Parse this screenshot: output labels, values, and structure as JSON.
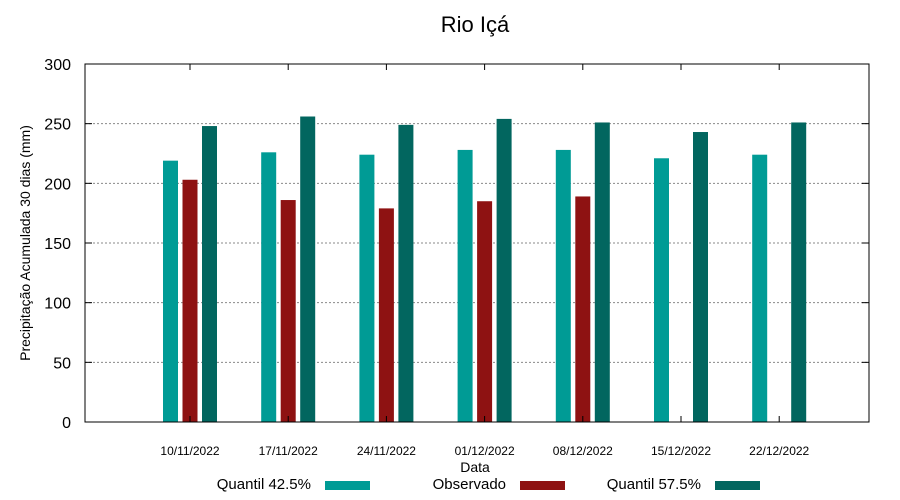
{
  "chart_data": {
    "type": "bar",
    "title": "Rio Içá",
    "xlabel": "Data",
    "ylabel": "Precipitação Acumulada 30 dias (mm)",
    "ylim": [
      0,
      300
    ],
    "yticks": [
      0,
      50,
      100,
      150,
      200,
      250,
      300
    ],
    "grid": true,
    "legend_position": "bottom",
    "categories": [
      "10/11/2022",
      "17/11/2022",
      "24/11/2022",
      "01/12/2022",
      "08/12/2022",
      "15/12/2022",
      "22/12/2022"
    ],
    "series": [
      {
        "name": "Quantil 42.5%",
        "color": "#009b95",
        "values": [
          219,
          226,
          224,
          228,
          228,
          221,
          224
        ]
      },
      {
        "name": "Observado",
        "color": "#8e1212",
        "values": [
          203,
          186,
          179,
          185,
          189,
          null,
          null
        ]
      },
      {
        "name": "Quantil 57.5%",
        "color": "#02665f",
        "values": [
          248,
          256,
          249,
          254,
          251,
          243,
          251
        ]
      }
    ]
  }
}
